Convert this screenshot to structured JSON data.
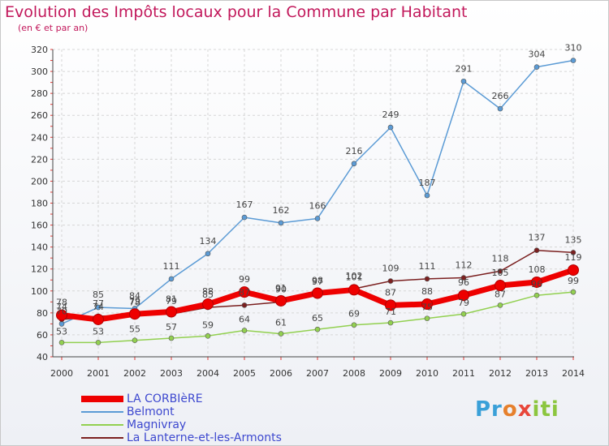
{
  "chart_data": {
    "type": "line",
    "title": "Evolution des Impôts locaux pour la Commune par Habitant",
    "subtitle": "(en € et par an)",
    "xlabel": "",
    "ylabel": "",
    "x": [
      "2000",
      "2001",
      "2002",
      "2003",
      "2004",
      "2005",
      "2006",
      "2007",
      "2008",
      "2009",
      "2010",
      "2011",
      "2012",
      "2013",
      "2014"
    ],
    "ylim": [
      40,
      320
    ],
    "yticks": [
      40,
      60,
      80,
      100,
      120,
      140,
      160,
      180,
      200,
      220,
      240,
      260,
      280,
      300,
      320
    ],
    "grid": true,
    "legend_position": "bottom-left",
    "series": [
      {
        "name": "LA CORBIèRE",
        "color": "#ee0000",
        "emphasis": true,
        "values": [
          78,
          74,
          79,
          81,
          88,
          99,
          91,
          98,
          101,
          87,
          88,
          96,
          105,
          108,
          119
        ]
      },
      {
        "name": "Belmont",
        "color": "#5b9bd5",
        "emphasis": false,
        "values": [
          70,
          85,
          84,
          111,
          134,
          167,
          162,
          166,
          216,
          249,
          187,
          291,
          266,
          304,
          310
        ]
      },
      {
        "name": "Magnivray",
        "color": "#92d050",
        "emphasis": false,
        "values": [
          53,
          53,
          55,
          57,
          59,
          64,
          61,
          65,
          69,
          71,
          75,
          79,
          87,
          96,
          99
        ]
      },
      {
        "name": "La Lanterne-et-les-Armonts",
        "color": "#7b2020",
        "emphasis": false,
        "values": [
          74,
          77,
          78,
          79,
          85,
          87,
          90,
          97,
          102,
          109,
          111,
          112,
          118,
          137,
          135
        ]
      }
    ]
  },
  "branding": {
    "logo_parts": [
      "Pr",
      "o",
      "x",
      "iti"
    ]
  }
}
